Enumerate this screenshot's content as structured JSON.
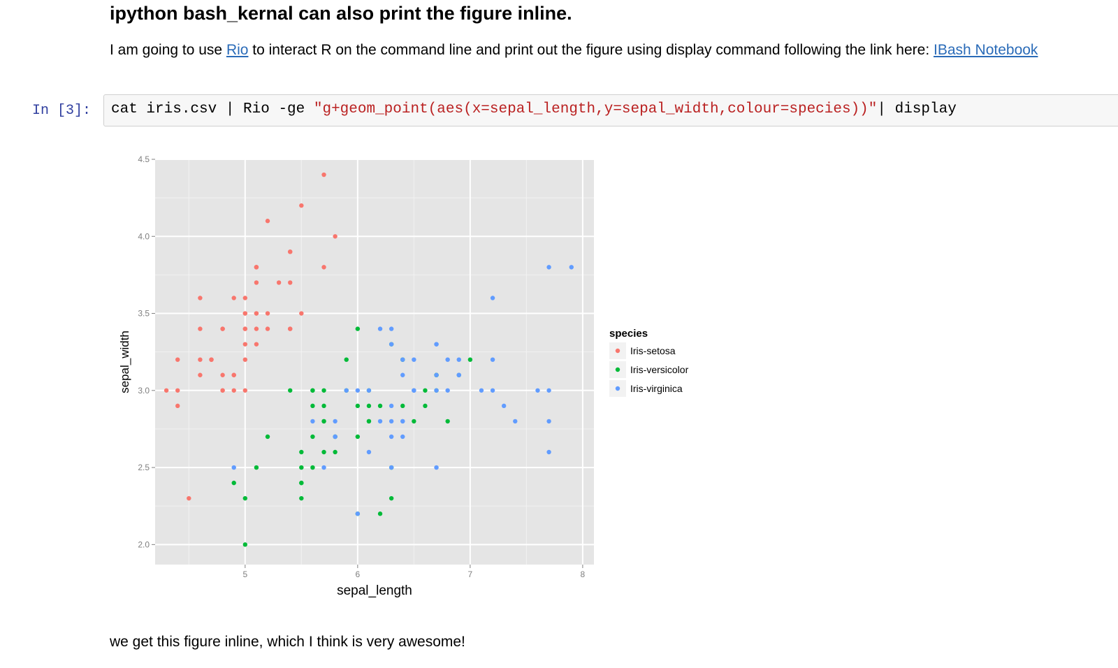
{
  "heading": "ipython bash_kernal can also print the figure inline.",
  "paragraph": {
    "before_link1": "I am going to use ",
    "link1": "Rio",
    "between_links": " to interact R on the command line and print out the figure using display command following the link here: ",
    "link2": "IBash Notebook"
  },
  "cell": {
    "prompt": "In [3]:",
    "code_prefix": "cat iris.csv | Rio -ge ",
    "code_string": "\"g+geom_point(aes(x=sepal_length,y=sepal_width,colour=species))\"",
    "code_suffix": "| display"
  },
  "chart_data": {
    "type": "scatter",
    "xlabel": "sepal_length",
    "ylabel": "sepal_width",
    "xlim": [
      4.2,
      8.1
    ],
    "ylim": [
      1.87,
      4.5
    ],
    "xticks": [
      5,
      6,
      7,
      8
    ],
    "yticks": [
      2.0,
      2.5,
      3.0,
      3.5,
      4.0,
      4.5
    ],
    "xtick_labels": [
      "5",
      "6",
      "7",
      "8"
    ],
    "ytick_labels": [
      "2.0",
      "2.5",
      "3.0",
      "3.5",
      "4.0",
      "4.5"
    ],
    "grid": true,
    "legend": {
      "title": "species",
      "position": "right"
    },
    "series": [
      {
        "name": "Iris-setosa",
        "color": "#f8766d",
        "points": [
          [
            5.1,
            3.5
          ],
          [
            4.9,
            3.0
          ],
          [
            4.7,
            3.2
          ],
          [
            4.6,
            3.1
          ],
          [
            5.0,
            3.6
          ],
          [
            5.4,
            3.9
          ],
          [
            4.6,
            3.4
          ],
          [
            5.0,
            3.4
          ],
          [
            4.4,
            2.9
          ],
          [
            4.9,
            3.1
          ],
          [
            5.4,
            3.7
          ],
          [
            4.8,
            3.4
          ],
          [
            4.8,
            3.0
          ],
          [
            4.3,
            3.0
          ],
          [
            5.8,
            4.0
          ],
          [
            5.7,
            4.4
          ],
          [
            5.4,
            3.9
          ],
          [
            5.1,
            3.5
          ],
          [
            5.7,
            3.8
          ],
          [
            5.1,
            3.8
          ],
          [
            5.4,
            3.4
          ],
          [
            5.1,
            3.7
          ],
          [
            4.6,
            3.6
          ],
          [
            5.1,
            3.3
          ],
          [
            4.8,
            3.4
          ],
          [
            5.0,
            3.0
          ],
          [
            5.0,
            3.4
          ],
          [
            5.2,
            3.5
          ],
          [
            5.2,
            3.4
          ],
          [
            4.7,
            3.2
          ],
          [
            4.8,
            3.1
          ],
          [
            5.4,
            3.4
          ],
          [
            5.2,
            4.1
          ],
          [
            5.5,
            4.2
          ],
          [
            4.9,
            3.1
          ],
          [
            5.0,
            3.2
          ],
          [
            5.5,
            3.5
          ],
          [
            4.9,
            3.6
          ],
          [
            4.4,
            3.0
          ],
          [
            5.1,
            3.4
          ],
          [
            5.0,
            3.5
          ],
          [
            4.5,
            2.3
          ],
          [
            4.4,
            3.2
          ],
          [
            5.0,
            3.5
          ],
          [
            5.1,
            3.8
          ],
          [
            4.8,
            3.0
          ],
          [
            5.1,
            3.8
          ],
          [
            4.6,
            3.2
          ],
          [
            5.3,
            3.7
          ],
          [
            5.0,
            3.3
          ]
        ]
      },
      {
        "name": "Iris-versicolor",
        "color": "#00ba38",
        "points": [
          [
            7.0,
            3.2
          ],
          [
            6.4,
            3.2
          ],
          [
            6.9,
            3.1
          ],
          [
            5.5,
            2.3
          ],
          [
            6.5,
            2.8
          ],
          [
            5.7,
            2.8
          ],
          [
            6.3,
            3.3
          ],
          [
            4.9,
            2.4
          ],
          [
            6.6,
            2.9
          ],
          [
            5.2,
            2.7
          ],
          [
            5.0,
            2.0
          ],
          [
            5.9,
            3.0
          ],
          [
            6.0,
            2.2
          ],
          [
            6.1,
            2.9
          ],
          [
            5.6,
            2.9
          ],
          [
            6.7,
            3.1
          ],
          [
            5.6,
            3.0
          ],
          [
            5.8,
            2.7
          ],
          [
            6.2,
            2.2
          ],
          [
            5.6,
            2.5
          ],
          [
            5.9,
            3.2
          ],
          [
            6.1,
            2.8
          ],
          [
            6.3,
            2.5
          ],
          [
            6.1,
            2.8
          ],
          [
            6.4,
            2.9
          ],
          [
            6.6,
            3.0
          ],
          [
            6.8,
            2.8
          ],
          [
            6.7,
            3.0
          ],
          [
            6.0,
            2.9
          ],
          [
            5.7,
            2.6
          ],
          [
            5.5,
            2.4
          ],
          [
            5.5,
            2.4
          ],
          [
            5.8,
            2.7
          ],
          [
            6.0,
            2.7
          ],
          [
            5.4,
            3.0
          ],
          [
            6.0,
            3.4
          ],
          [
            6.7,
            3.1
          ],
          [
            6.3,
            2.3
          ],
          [
            5.6,
            3.0
          ],
          [
            5.5,
            2.5
          ],
          [
            5.5,
            2.6
          ],
          [
            6.1,
            3.0
          ],
          [
            5.8,
            2.6
          ],
          [
            5.0,
            2.3
          ],
          [
            5.6,
            2.7
          ],
          [
            5.7,
            3.0
          ],
          [
            5.7,
            2.9
          ],
          [
            6.2,
            2.9
          ],
          [
            5.1,
            2.5
          ],
          [
            5.7,
            2.8
          ]
        ]
      },
      {
        "name": "Iris-virginica",
        "color": "#619cff",
        "points": [
          [
            6.3,
            3.3
          ],
          [
            5.8,
            2.7
          ],
          [
            7.1,
            3.0
          ],
          [
            6.3,
            2.9
          ],
          [
            6.5,
            3.0
          ],
          [
            7.6,
            3.0
          ],
          [
            4.9,
            2.5
          ],
          [
            7.3,
            2.9
          ],
          [
            6.7,
            2.5
          ],
          [
            7.2,
            3.6
          ],
          [
            6.5,
            3.2
          ],
          [
            6.4,
            2.7
          ],
          [
            6.8,
            3.0
          ],
          [
            5.7,
            2.5
          ],
          [
            5.8,
            2.8
          ],
          [
            6.4,
            3.2
          ],
          [
            6.5,
            3.0
          ],
          [
            7.7,
            3.8
          ],
          [
            7.7,
            2.6
          ],
          [
            6.0,
            2.2
          ],
          [
            6.9,
            3.2
          ],
          [
            5.6,
            2.8
          ],
          [
            7.7,
            2.8
          ],
          [
            6.3,
            2.7
          ],
          [
            6.7,
            3.3
          ],
          [
            7.2,
            3.2
          ],
          [
            6.2,
            2.8
          ],
          [
            6.1,
            3.0
          ],
          [
            6.4,
            2.8
          ],
          [
            7.2,
            3.0
          ],
          [
            7.4,
            2.8
          ],
          [
            7.9,
            3.8
          ],
          [
            6.4,
            2.8
          ],
          [
            6.3,
            2.8
          ],
          [
            6.1,
            2.6
          ],
          [
            7.7,
            3.0
          ],
          [
            6.3,
            3.4
          ],
          [
            6.4,
            3.1
          ],
          [
            6.0,
            3.0
          ],
          [
            6.9,
            3.1
          ],
          [
            6.7,
            3.1
          ],
          [
            6.9,
            3.1
          ],
          [
            5.8,
            2.7
          ],
          [
            6.8,
            3.2
          ],
          [
            6.7,
            3.3
          ],
          [
            6.7,
            3.0
          ],
          [
            6.3,
            2.5
          ],
          [
            6.5,
            3.0
          ],
          [
            6.2,
            3.4
          ],
          [
            5.9,
            3.0
          ]
        ]
      }
    ]
  },
  "trailer": "we get this figure inline, which I think is very awesome!"
}
